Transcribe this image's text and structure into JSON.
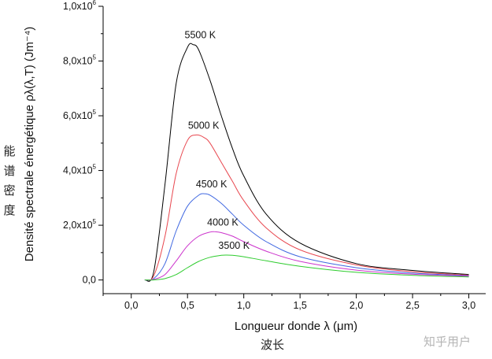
{
  "chart_data": {
    "type": "line",
    "xlabel": "Longueur donde λ (μm)",
    "ylabel": "Densité spectrale énergétique ρλ(λ,T) (Jm⁻⁴)",
    "xlim": [
      -0.25,
      3.15
    ],
    "ylim": [
      -0.05,
      1.0
    ],
    "x_ticks": [
      0.0,
      0.5,
      1.0,
      1.5,
      2.0,
      2.5,
      3.0
    ],
    "x_tick_labels": [
      "0,0",
      "0,5",
      "1,0",
      "1,5",
      "2,0",
      "2,5",
      "3,0"
    ],
    "y_ticks": [
      0.0,
      0.2,
      0.4,
      0.6,
      0.8,
      1.0
    ],
    "y_tick_labels": [
      {
        "mantissa": "0,0",
        "exp": ""
      },
      {
        "mantissa": "2,0x10",
        "exp": "5"
      },
      {
        "mantissa": "4,0x10",
        "exp": "5"
      },
      {
        "mantissa": "6,0x10",
        "exp": "5"
      },
      {
        "mantissa": "8,0x10",
        "exp": "5"
      },
      {
        "mantissa": "1,0x10",
        "exp": "6"
      }
    ],
    "y_unit_multiplier": 1000000,
    "grid": false,
    "series": [
      {
        "name": "5500 K",
        "color": "#000000",
        "x": [
          0.12,
          0.2,
          0.3,
          0.4,
          0.5,
          0.55,
          0.6,
          0.7,
          0.8,
          0.9,
          1.0,
          1.2,
          1.5,
          2.0,
          2.5,
          3.0
        ],
        "y": [
          0.0,
          0.03,
          0.35,
          0.72,
          0.85,
          0.86,
          0.84,
          0.73,
          0.6,
          0.48,
          0.38,
          0.24,
          0.135,
          0.06,
          0.035,
          0.02
        ]
      },
      {
        "name": "5000 K",
        "color": "#e8474f",
        "x": [
          0.12,
          0.2,
          0.3,
          0.4,
          0.5,
          0.58,
          0.65,
          0.7,
          0.8,
          0.9,
          1.0,
          1.2,
          1.5,
          2.0,
          2.5,
          3.0
        ],
        "y": [
          0.0,
          0.015,
          0.16,
          0.39,
          0.51,
          0.53,
          0.52,
          0.5,
          0.43,
          0.36,
          0.29,
          0.19,
          0.11,
          0.055,
          0.03,
          0.018
        ]
      },
      {
        "name": "4500 K",
        "color": "#4169e1",
        "x": [
          0.12,
          0.2,
          0.3,
          0.4,
          0.5,
          0.6,
          0.65,
          0.7,
          0.8,
          0.9,
          1.0,
          1.2,
          1.5,
          2.0,
          2.5,
          3.0
        ],
        "y": [
          0.0,
          0.005,
          0.06,
          0.18,
          0.27,
          0.31,
          0.315,
          0.31,
          0.28,
          0.24,
          0.2,
          0.14,
          0.085,
          0.045,
          0.025,
          0.016
        ]
      },
      {
        "name": "4000 K",
        "color": "#cc33cc",
        "x": [
          0.12,
          0.2,
          0.3,
          0.4,
          0.5,
          0.6,
          0.7,
          0.75,
          0.8,
          0.9,
          1.0,
          1.2,
          1.5,
          2.0,
          2.5,
          3.0
        ],
        "y": [
          0.0,
          0.002,
          0.02,
          0.07,
          0.125,
          0.16,
          0.175,
          0.176,
          0.173,
          0.16,
          0.14,
          0.105,
          0.068,
          0.036,
          0.021,
          0.014
        ]
      },
      {
        "name": "3500 K",
        "color": "#2ecc2e",
        "x": [
          0.12,
          0.2,
          0.3,
          0.4,
          0.5,
          0.6,
          0.7,
          0.8,
          0.85,
          0.9,
          1.0,
          1.2,
          1.5,
          2.0,
          2.5,
          3.0
        ],
        "y": [
          0.0,
          0.0,
          0.005,
          0.02,
          0.045,
          0.068,
          0.083,
          0.09,
          0.091,
          0.09,
          0.085,
          0.07,
          0.05,
          0.028,
          0.017,
          0.011
        ]
      }
    ]
  },
  "annotations": {
    "ylabel_cn": [
      "能",
      "谱",
      "密",
      "度"
    ],
    "xlabel_cn": "波长",
    "watermark": "知乎用户"
  }
}
